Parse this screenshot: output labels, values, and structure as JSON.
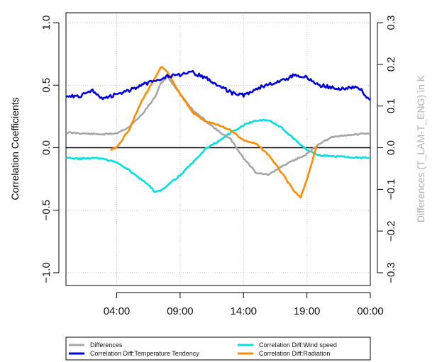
{
  "chart_data": {
    "type": "line",
    "ylabel_left": "Correlation Coefficients",
    "ylabel_right": "Differences (T_LAM-T_ENG) in K",
    "x_hours_range": [
      0,
      24
    ],
    "x_ticks": [
      {
        "hour": 4,
        "label": "04:00"
      },
      {
        "hour": 9,
        "label": "09:00"
      },
      {
        "hour": 14,
        "label": "14:00"
      },
      {
        "hour": 19,
        "label": "19:00"
      },
      {
        "hour": 24,
        "label": "00:00"
      }
    ],
    "ylim_left": [
      -1.0,
      1.0
    ],
    "yticks_left": [
      {
        "value": 1.0,
        "label": "1.0"
      },
      {
        "value": 0.5,
        "label": "0.5"
      },
      {
        "value": 0.0,
        "label": "0.0"
      },
      {
        "value": -0.5,
        "label": "−0.5"
      },
      {
        "value": -1.0,
        "label": "−1.0"
      }
    ],
    "ylim_right": [
      -0.3,
      0.3
    ],
    "yticks_right": [
      {
        "value": 0.3,
        "label": "0.3"
      },
      {
        "value": 0.2,
        "label": "0.2"
      },
      {
        "value": 0.1,
        "label": "0.1"
      },
      {
        "value": 0.0,
        "label": "0.0"
      },
      {
        "value": -0.1,
        "label": "−0.1"
      },
      {
        "value": -0.2,
        "label": "−0.2"
      },
      {
        "value": -0.3,
        "label": "−0.3"
      }
    ],
    "grid": true,
    "legend_placement": "bottom",
    "series": [
      {
        "name": "Differences",
        "color": "#a6a6a6",
        "axis": "right",
        "x": [
          0,
          1,
          2,
          3,
          4,
          5,
          6,
          7,
          7.5,
          8,
          9,
          10,
          11,
          12,
          13,
          14,
          15,
          16,
          17,
          18,
          19,
          20,
          21,
          22,
          23,
          24
        ],
        "y": [
          0.036,
          0.035,
          0.033,
          0.032,
          0.035,
          0.05,
          0.08,
          0.12,
          0.155,
          0.17,
          0.13,
          0.09,
          0.065,
          0.04,
          0.02,
          -0.025,
          -0.06,
          -0.065,
          -0.045,
          -0.03,
          -0.015,
          0.01,
          0.025,
          0.03,
          0.032,
          0.034
        ]
      },
      {
        "name": "Correlation Diff:Temperature Tendency",
        "color": "#0000dd",
        "axis": "left",
        "x": [
          0,
          1,
          2,
          3,
          4,
          5,
          6,
          7,
          8,
          9,
          10,
          11,
          12,
          13,
          14,
          15,
          16,
          17,
          18,
          19,
          20,
          21,
          22,
          23,
          24
        ],
        "y": [
          0.42,
          0.41,
          0.46,
          0.39,
          0.43,
          0.46,
          0.5,
          0.54,
          0.57,
          0.58,
          0.6,
          0.56,
          0.5,
          0.44,
          0.42,
          0.47,
          0.51,
          0.53,
          0.58,
          0.56,
          0.5,
          0.48,
          0.47,
          0.49,
          0.38
        ]
      },
      {
        "name": "Correlation Diff:Wind speed",
        "color": "#00e0e0",
        "axis": "left",
        "x": [
          0,
          1,
          2,
          3,
          4,
          5,
          6,
          6.5,
          7,
          7.5,
          8,
          9,
          10,
          11,
          12,
          13,
          14,
          15,
          16,
          17,
          18,
          19,
          20,
          21,
          22,
          23,
          24
        ],
        "y": [
          -0.08,
          -0.09,
          -0.08,
          -0.09,
          -0.12,
          -0.18,
          -0.26,
          -0.3,
          -0.35,
          -0.34,
          -0.3,
          -0.22,
          -0.12,
          -0.01,
          0.05,
          0.12,
          0.18,
          0.22,
          0.22,
          0.16,
          0.07,
          -0.02,
          -0.06,
          -0.07,
          -0.07,
          -0.08,
          -0.08
        ]
      },
      {
        "name": "Correlation Diff:Radiation",
        "color": "#ff8c00",
        "axis": "left",
        "x": [
          3.5,
          4,
          5,
          6,
          7,
          7.5,
          8,
          9,
          10,
          11,
          12,
          13,
          14,
          15,
          16,
          17,
          18,
          18.5,
          19,
          19.8
        ],
        "y": [
          -0.02,
          0.0,
          0.15,
          0.38,
          0.55,
          0.65,
          0.6,
          0.43,
          0.28,
          0.21,
          0.18,
          0.14,
          0.06,
          0.03,
          -0.06,
          -0.2,
          -0.35,
          -0.4,
          -0.25,
          0.02
        ]
      }
    ]
  }
}
